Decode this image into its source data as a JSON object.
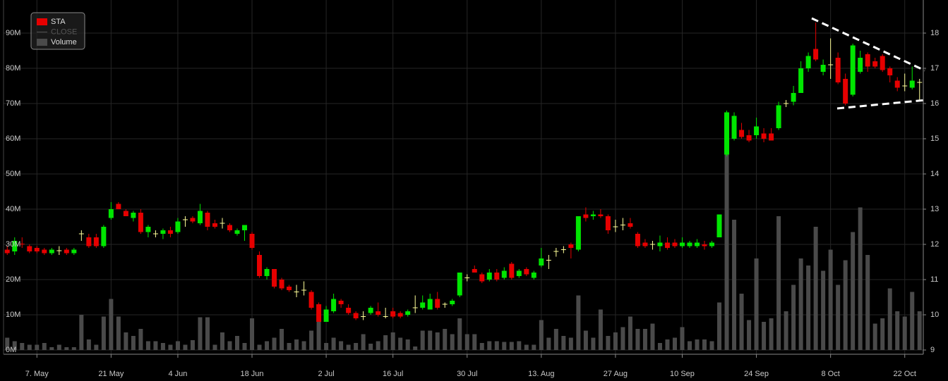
{
  "chart_data": {
    "type": "candlestick",
    "categories": [
      null,
      null,
      null,
      null,
      "7. May",
      null,
      null,
      null,
      null,
      null,
      null,
      null,
      null,
      null,
      "21 May",
      null,
      null,
      null,
      null,
      null,
      null,
      null,
      null,
      "4 Jun",
      null,
      null,
      null,
      null,
      null,
      null,
      null,
      null,
      null,
      "18 Jun",
      null,
      null,
      null,
      null,
      null,
      null,
      null,
      null,
      null,
      "2 Jul",
      null,
      null,
      null,
      null,
      null,
      null,
      null,
      null,
      "16 Jul",
      null,
      null,
      null,
      null,
      null,
      null,
      null,
      null,
      null,
      "30 Jul",
      null,
      null,
      null,
      null,
      null,
      null,
      null,
      null,
      null,
      "13. Aug",
      null,
      null,
      null,
      null,
      null,
      null,
      null,
      null,
      null,
      "27 Aug",
      null,
      null,
      null,
      null,
      null,
      null,
      null,
      null,
      "10 Sep",
      null,
      null,
      null,
      null,
      null,
      null,
      null,
      null,
      null,
      "24 Sep",
      null,
      null,
      null,
      null,
      null,
      null,
      null,
      null,
      null,
      "8 Oct",
      null,
      null,
      null,
      null,
      null,
      null,
      null,
      null,
      null,
      "22 Oct",
      null,
      null
    ],
    "series": [
      {
        "name": "STA",
        "axis": "y2",
        "color": "#e60000",
        "up_color": "#00e600",
        "down_color": "#e60000",
        "doji_color": "#ffff99",
        "open": [
          11.85,
          11.8,
          12.02,
          11.95,
          11.9,
          11.85,
          11.75,
          11.82,
          11.85,
          11.75,
          12.3,
          12.2,
          12.2,
          11.95,
          12.75,
          13.15,
          12.95,
          12.75,
          12.9,
          12.35,
          12.3,
          12.3,
          12.4,
          12.35,
          12.7,
          12.75,
          12.6,
          12.9,
          12.6,
          12.6,
          12.55,
          12.3,
          12.4,
          12.3,
          11.7,
          11.1,
          11.3,
          11.0,
          10.8,
          10.65,
          10.7,
          10.65,
          10.3,
          9.8,
          10.1,
          10.4,
          10.2,
          10.05,
          9.95,
          10.05,
          10.1,
          9.95,
          10.1,
          10.05,
          10.0,
          10.2,
          10.2,
          10.15,
          10.45,
          10.3,
          10.3,
          10.55,
          11.05,
          11.3,
          11.15,
          11.0,
          11.2,
          11.05,
          11.45,
          11.1,
          11.3,
          11.05,
          11.4,
          11.55,
          11.8,
          11.85,
          12.0,
          11.85,
          12.85,
          12.8,
          12.85,
          12.8,
          12.5,
          12.55,
          12.6,
          12.3,
          12.05,
          12.0,
          11.95,
          12.05,
          12.05,
          11.95,
          11.95,
          11.95,
          12.0,
          11.95,
          12.2,
          14.55,
          15.0,
          15.25,
          15.1,
          15.1,
          15.15,
          15.15,
          15.3,
          16.0,
          16.05,
          16.3,
          17.0,
          17.55,
          16.9,
          17.1,
          17.3,
          16.7,
          16.25,
          16.9,
          17.4,
          17.2,
          17.35,
          17.0,
          16.65,
          16.5,
          16.45,
          16.6
        ],
        "high": [
          11.95,
          12.2,
          12.2,
          12.0,
          11.95,
          11.9,
          11.9,
          11.95,
          11.9,
          11.9,
          12.4,
          12.3,
          12.3,
          12.55,
          13.2,
          13.2,
          13.0,
          12.95,
          13.0,
          12.55,
          12.4,
          12.45,
          12.5,
          12.75,
          12.8,
          12.8,
          13.15,
          12.95,
          12.7,
          12.75,
          12.6,
          12.45,
          12.55,
          12.35,
          11.8,
          11.35,
          11.3,
          11.05,
          10.85,
          10.85,
          10.95,
          10.7,
          10.35,
          10.25,
          10.6,
          10.45,
          10.3,
          10.1,
          10.1,
          10.25,
          10.35,
          10.2,
          10.2,
          10.1,
          10.15,
          10.55,
          10.55,
          10.6,
          10.65,
          10.35,
          10.45,
          11.2,
          11.15,
          11.4,
          11.2,
          11.3,
          11.3,
          11.35,
          11.5,
          11.3,
          11.35,
          11.25,
          11.9,
          11.7,
          11.9,
          11.95,
          12.05,
          12.8,
          13.05,
          12.95,
          13.0,
          12.85,
          12.7,
          12.75,
          12.75,
          12.35,
          12.15,
          12.1,
          12.25,
          12.2,
          12.15,
          12.2,
          12.1,
          12.15,
          12.1,
          12.1,
          12.85,
          15.8,
          15.75,
          15.45,
          15.25,
          15.6,
          15.3,
          15.3,
          16.05,
          16.1,
          16.5,
          17.2,
          17.45,
          18.3,
          17.25,
          17.85,
          17.45,
          16.85,
          17.7,
          17.5,
          17.45,
          17.3,
          17.4,
          17.05,
          16.75,
          16.85,
          17.05,
          16.7
        ],
        "low": [
          11.7,
          11.7,
          11.9,
          11.75,
          11.75,
          11.7,
          11.7,
          11.7,
          11.7,
          11.7,
          12.1,
          11.9,
          11.9,
          11.9,
          12.7,
          13.0,
          12.8,
          12.65,
          12.3,
          12.2,
          12.2,
          12.15,
          12.2,
          12.3,
          12.5,
          12.6,
          12.55,
          12.4,
          12.45,
          12.45,
          12.35,
          12.25,
          12.1,
          11.85,
          11.05,
          11.0,
          10.75,
          10.7,
          10.65,
          10.5,
          10.55,
          10.15,
          9.8,
          9.8,
          10.05,
          10.2,
          10.0,
          9.85,
          9.85,
          10.0,
          9.95,
          9.9,
          9.9,
          9.9,
          9.95,
          10.05,
          10.15,
          10.15,
          10.15,
          10.2,
          10.25,
          10.5,
          10.95,
          11.2,
          10.9,
          10.95,
          10.95,
          11.0,
          11.0,
          11.05,
          11.1,
          11.0,
          11.35,
          11.3,
          11.65,
          11.75,
          11.6,
          11.8,
          12.65,
          12.7,
          12.75,
          12.3,
          12.35,
          12.4,
          12.45,
          11.9,
          11.9,
          11.85,
          11.8,
          11.85,
          11.9,
          11.9,
          11.9,
          11.9,
          11.85,
          11.9,
          12.2,
          14.5,
          14.95,
          15.0,
          14.9,
          15.0,
          14.9,
          14.95,
          15.25,
          15.9,
          15.95,
          16.3,
          16.9,
          17.2,
          16.8,
          16.7,
          16.55,
          15.95,
          16.2,
          16.85,
          16.9,
          17.0,
          16.9,
          16.6,
          16.35,
          16.35,
          16.4,
          16.1
        ],
        "close": [
          11.75,
          12.1,
          12.0,
          11.8,
          11.8,
          11.75,
          11.85,
          11.83,
          11.75,
          11.85,
          12.31,
          11.95,
          11.95,
          12.5,
          13.0,
          13.0,
          12.8,
          12.9,
          12.35,
          12.5,
          12.31,
          12.4,
          12.3,
          12.65,
          12.71,
          12.65,
          12.95,
          12.5,
          12.5,
          12.61,
          12.4,
          12.4,
          12.55,
          11.9,
          11.1,
          11.3,
          10.8,
          10.75,
          10.7,
          10.66,
          10.71,
          10.2,
          9.8,
          10.15,
          10.45,
          10.3,
          10.05,
          9.9,
          9.96,
          10.2,
          10.0,
          9.96,
          9.95,
          9.95,
          10.1,
          10.21,
          10.35,
          10.45,
          10.2,
          10.31,
          10.4,
          11.2,
          11.06,
          11.2,
          10.95,
          11.2,
          11.0,
          11.25,
          11.05,
          11.25,
          11.15,
          11.2,
          11.6,
          11.56,
          11.81,
          11.86,
          11.9,
          12.8,
          12.75,
          12.85,
          12.8,
          12.4,
          12.51,
          12.56,
          12.5,
          11.95,
          11.95,
          12.01,
          12.05,
          11.9,
          11.95,
          12.05,
          12.05,
          12.05,
          11.95,
          12.05,
          12.85,
          15.75,
          15.65,
          15.05,
          14.95,
          15.35,
          15.0,
          14.95,
          15.95,
          16.01,
          16.3,
          17.0,
          17.35,
          17.25,
          17.1,
          17.11,
          16.6,
          16.0,
          17.65,
          17.3,
          17.05,
          17.05,
          16.95,
          16.8,
          16.45,
          16.51,
          16.65,
          16.61
        ]
      },
      {
        "name": "CLOSE",
        "visible": false
      },
      {
        "name": "Volume",
        "type": "bar",
        "axis": "y",
        "color": "#4a4a4a",
        "values": [
          3.5,
          2.5,
          2,
          1.5,
          1.5,
          2,
          0.8,
          1.5,
          0.8,
          0.8,
          10,
          3,
          1.5,
          9.5,
          14.5,
          9.5,
          5,
          4,
          6,
          2.5,
          2.5,
          2,
          1.5,
          2.5,
          1.5,
          2.8,
          9.3,
          9.3,
          1.5,
          5,
          2.5,
          4,
          2,
          9,
          1.5,
          2.5,
          3.5,
          6,
          2,
          3,
          2.5,
          5.5,
          9.5,
          2,
          3.5,
          2.5,
          1.5,
          2,
          4.5,
          1.8,
          2.5,
          4.2,
          5,
          3.5,
          3,
          1,
          5.5,
          5.5,
          5,
          6,
          4.5,
          9,
          4.5,
          4.5,
          2,
          2.5,
          2.5,
          2.3,
          2.3,
          2.5,
          1.5,
          1.5,
          8.5,
          3.5,
          6,
          4,
          3.5,
          15.5,
          5.5,
          3.5,
          11.5,
          4,
          5,
          6.5,
          9.5,
          6,
          6,
          7.5,
          2,
          3,
          3.5,
          6.5,
          2.5,
          3,
          3,
          2.5,
          13.5,
          65,
          37,
          16,
          8.5,
          26,
          8,
          9,
          38,
          11,
          18.5,
          26,
          24,
          35,
          22.5,
          28.5,
          18.5,
          25.5,
          33.5,
          40.5,
          27,
          7.5,
          9,
          17.5,
          11,
          9.5,
          16.5,
          11
        ]
      }
    ],
    "ylim": [
      0,
      99.4
    ],
    "yticks": [
      {
        "value": 0,
        "label": "0M"
      },
      {
        "value": 10,
        "label": "10M"
      },
      {
        "value": 20,
        "label": "20M"
      },
      {
        "value": 30,
        "label": "30M"
      },
      {
        "value": 40,
        "label": "40M"
      },
      {
        "value": 50,
        "label": "50M"
      },
      {
        "value": 60,
        "label": "60M"
      },
      {
        "value": 70,
        "label": "70M"
      },
      {
        "value": 80,
        "label": "80M"
      },
      {
        "value": 90,
        "label": "90M"
      }
    ],
    "y2lim": [
      9,
      18.94
    ],
    "y2ticks": [
      9,
      10,
      11,
      12,
      13,
      14,
      15,
      16,
      17,
      18
    ],
    "grid": true,
    "legend": "top-left"
  }
}
